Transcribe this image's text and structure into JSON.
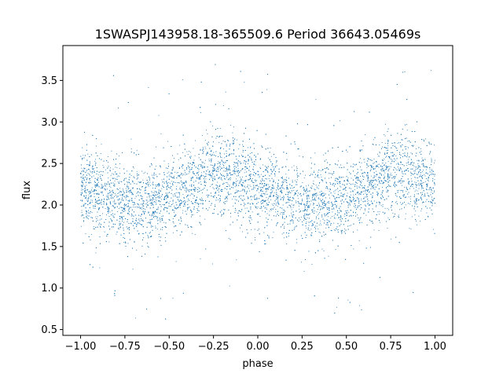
{
  "chart_data": {
    "type": "scatter",
    "title": "1SWASPJ143958.18-365509.6 Period 36643.05469s",
    "xlabel": "phase",
    "ylabel": "flux",
    "xlim": [
      -1.1,
      1.1
    ],
    "ylim": [
      0.43,
      3.92
    ],
    "xticks": [
      -1.0,
      -0.75,
      -0.5,
      -0.25,
      0.0,
      0.25,
      0.5,
      0.75,
      1.0
    ],
    "xtick_labels": [
      "−1.00",
      "−0.75",
      "−0.50",
      "−0.25",
      "0.00",
      "0.25",
      "0.50",
      "0.75",
      "1.00"
    ],
    "yticks": [
      0.5,
      1.0,
      1.5,
      2.0,
      2.5,
      3.0,
      3.5
    ],
    "ytick_labels": [
      "0.5",
      "1.0",
      "1.5",
      "2.0",
      "2.5",
      "3.0",
      "3.5"
    ],
    "grid": false,
    "legend": "none",
    "color": "#1f77b4",
    "series": [
      {
        "x_range": [
          -1.0,
          1.0
        ],
        "approx_point_count": 22000,
        "mean_flux_profile": {
          "phase": [
            -1.0,
            -0.85,
            -0.7,
            -0.55,
            -0.4,
            -0.25,
            -0.1,
            0.0,
            0.15,
            0.3,
            0.45,
            0.6,
            0.75,
            0.9,
            1.0
          ],
          "flux": [
            2.2,
            2.08,
            2.03,
            2.05,
            2.18,
            2.4,
            2.3,
            2.2,
            2.08,
            2.02,
            2.05,
            2.2,
            2.4,
            2.32,
            2.22
          ]
        },
        "typical_scatter": 0.25,
        "flux_extent": [
          0.58,
          3.75
        ]
      }
    ]
  }
}
